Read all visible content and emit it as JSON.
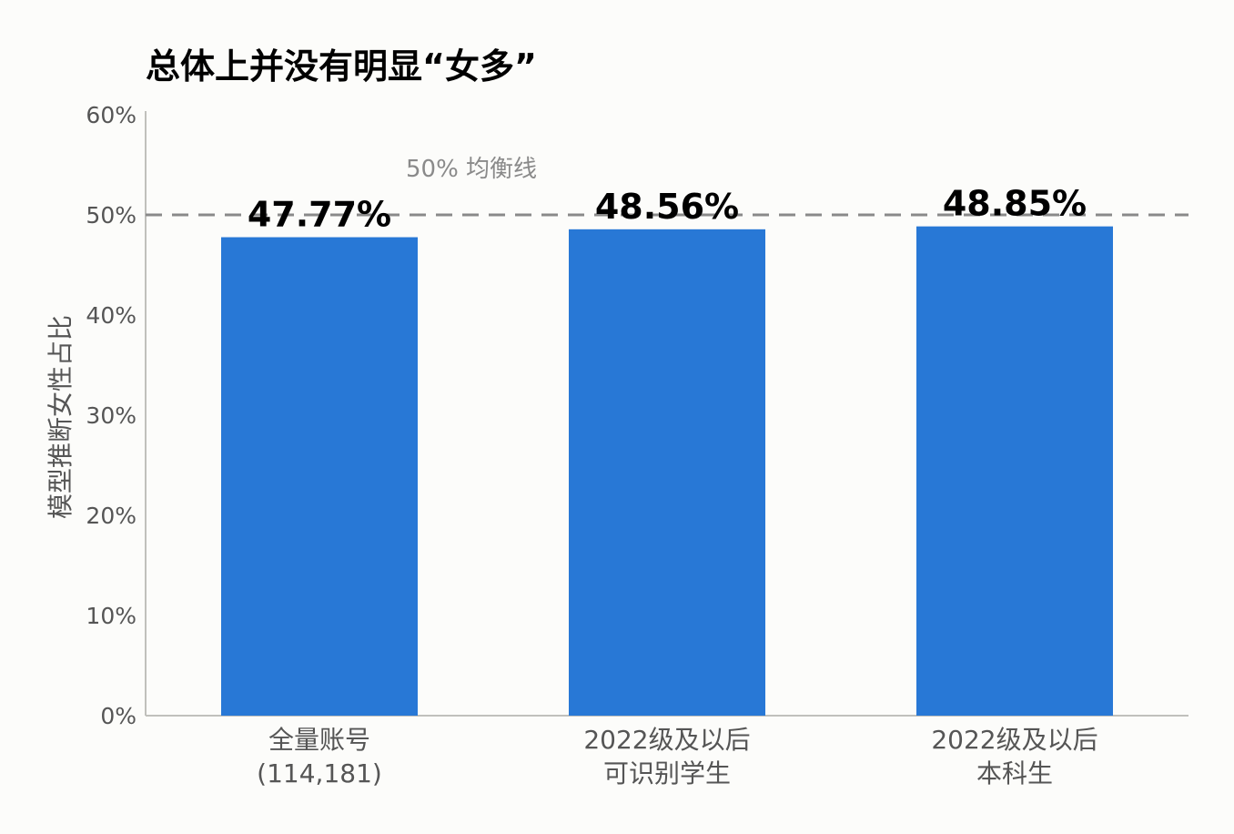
{
  "chart_data": {
    "type": "bar",
    "title": "总体上并没有明显“女多”",
    "ylabel": "模型推断女性占比",
    "xlabel": "",
    "ylim": [
      0,
      60
    ],
    "yticks": [
      "0%",
      "10%",
      "20%",
      "30%",
      "40%",
      "50%",
      "60%"
    ],
    "categories": [
      [
        "全量账号",
        "(114,181)"
      ],
      [
        "2022级及以后",
        "可识别学生"
      ],
      [
        "2022级及以后",
        "本科生"
      ]
    ],
    "values": [
      47.77,
      48.56,
      48.85
    ],
    "data_labels": [
      "47.77%",
      "48.56%",
      "48.85%"
    ],
    "reference_line": {
      "value": 50,
      "label": "50% 均衡线"
    },
    "grid": false,
    "colors": {
      "bar": "#2878d6",
      "reference_line": "#8a8a8a",
      "axis": "#c0c0bc",
      "tick_text": "#555555",
      "label_text": "#000000",
      "background": "#fcfcfa"
    }
  }
}
